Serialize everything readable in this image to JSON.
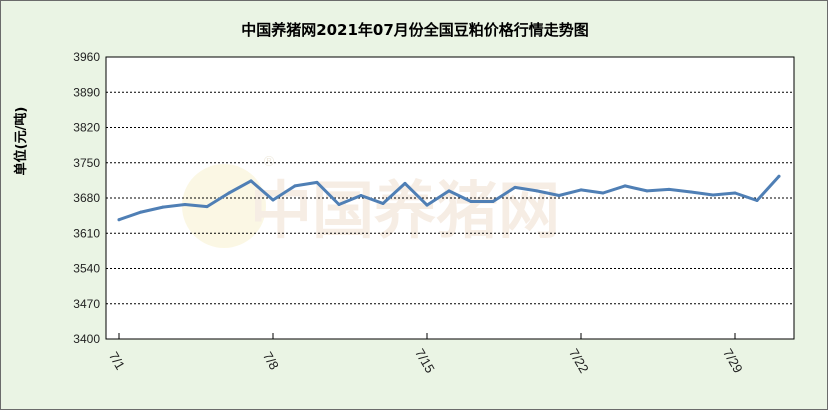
{
  "chart_data": {
    "type": "line",
    "title": "中国养猪网2021年07月份全国豆粕价格行情走势图",
    "ylabel": "单位(元/吨)",
    "xlabel": "",
    "ylim": [
      3400,
      3960
    ],
    "yticks": [
      3400,
      3470,
      3540,
      3610,
      3680,
      3750,
      3820,
      3890,
      3960
    ],
    "x": [
      "7/1",
      "7/2",
      "7/3",
      "7/4",
      "7/5",
      "7/6",
      "7/7",
      "7/8",
      "7/9",
      "7/10",
      "7/11",
      "7/12",
      "7/13",
      "7/14",
      "7/15",
      "7/16",
      "7/17",
      "7/18",
      "7/19",
      "7/20",
      "7/21",
      "7/22",
      "7/23",
      "7/24",
      "7/25",
      "7/26",
      "7/27",
      "7/28",
      "7/29",
      "7/30",
      "7/31"
    ],
    "xticks": [
      "7/1",
      "7/8",
      "7/15",
      "7/22",
      "7/29"
    ],
    "series": [
      {
        "values": [
          3637,
          3652,
          3662,
          3667,
          3663,
          3690,
          3714,
          3676,
          3704,
          3711,
          3667,
          3685,
          3669,
          3709,
          3666,
          3694,
          3673,
          3673,
          3701,
          3694,
          3685,
          3696,
          3690,
          3704,
          3694,
          3697,
          3692,
          3686,
          3690,
          3675,
          3723
        ]
      }
    ],
    "grid": "horizontal-dashed",
    "line_color": "#4f7fb5",
    "plot_background": "#ffffff",
    "outer_background": "#eaf4e4"
  },
  "watermark": {
    "text": "中国养猪网",
    "registered": "®"
  }
}
